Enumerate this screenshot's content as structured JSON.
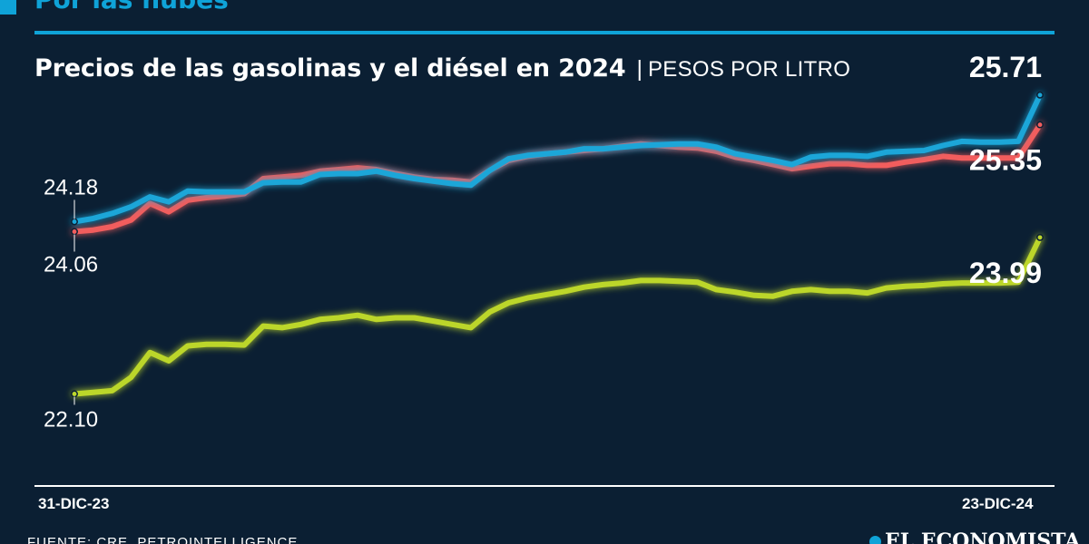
{
  "header": {
    "section_title": "Por las nubes"
  },
  "chart_title": {
    "main": "Precios de las gasolinas y el diésel en 2024",
    "separator": "|",
    "unit": "PESOS POR LITRO"
  },
  "colors": {
    "background": "#0b1f33",
    "accent": "#0fa3d8",
    "series_blue": "#1aa6d8",
    "series_red": "#f25d5d",
    "series_green": "#bcd62c"
  },
  "chart_data": {
    "type": "line",
    "x": [
      "2023-12-31",
      "2024-01-07",
      "2024-01-14",
      "2024-01-21",
      "2024-01-28",
      "2024-02-04",
      "2024-02-11",
      "2024-02-18",
      "2024-02-25",
      "2024-03-03",
      "2024-03-10",
      "2024-03-17",
      "2024-03-24",
      "2024-03-31",
      "2024-04-07",
      "2024-04-14",
      "2024-04-21",
      "2024-04-28",
      "2024-05-05",
      "2024-05-12",
      "2024-05-19",
      "2024-05-26",
      "2024-06-02",
      "2024-06-09",
      "2024-06-16",
      "2024-06-23",
      "2024-06-30",
      "2024-07-07",
      "2024-07-14",
      "2024-07-21",
      "2024-07-28",
      "2024-08-04",
      "2024-08-11",
      "2024-08-18",
      "2024-08-25",
      "2024-09-01",
      "2024-09-08",
      "2024-09-15",
      "2024-09-22",
      "2024-09-29",
      "2024-10-06",
      "2024-10-13",
      "2024-10-20",
      "2024-10-27",
      "2024-11-03",
      "2024-11-10",
      "2024-11-17",
      "2024-11-24",
      "2024-12-01",
      "2024-12-08",
      "2024-12-15",
      "2024-12-23"
    ],
    "x_tick_labels": [
      "31-DIC-23",
      "23-DIC-24"
    ],
    "series": [
      {
        "color": "#1aa6d8",
        "values": [
          24.18,
          24.22,
          24.28,
          24.36,
          24.48,
          24.42,
          24.55,
          24.54,
          24.54,
          24.54,
          24.65,
          24.66,
          24.66,
          24.75,
          24.76,
          24.76,
          24.79,
          24.74,
          24.7,
          24.67,
          24.64,
          24.62,
          24.8,
          24.94,
          24.98,
          25.0,
          25.02,
          25.06,
          25.06,
          25.08,
          25.1,
          25.11,
          25.12,
          25.12,
          25.08,
          25.0,
          24.96,
          24.92,
          24.87,
          24.96,
          24.98,
          24.98,
          24.97,
          25.02,
          25.03,
          25.04,
          25.1,
          25.15,
          25.14,
          25.14,
          25.15,
          25.71
        ]
      },
      {
        "color": "#f25d5d",
        "values": [
          24.06,
          24.08,
          24.12,
          24.2,
          24.4,
          24.3,
          24.44,
          24.47,
          24.49,
          24.52,
          24.7,
          24.72,
          24.74,
          24.79,
          24.81,
          24.83,
          24.81,
          24.76,
          24.72,
          24.69,
          24.68,
          24.66,
          24.8,
          24.92,
          24.97,
          25.0,
          25.02,
          25.04,
          25.06,
          25.09,
          25.12,
          25.1,
          25.08,
          25.07,
          25.03,
          24.96,
          24.92,
          24.87,
          24.82,
          24.85,
          24.88,
          24.88,
          24.86,
          24.86,
          24.9,
          24.93,
          24.97,
          24.95,
          24.95,
          24.95,
          24.95,
          25.35
        ]
      },
      {
        "color": "#bcd62c",
        "values": [
          22.1,
          22.12,
          22.14,
          22.3,
          22.6,
          22.5,
          22.68,
          22.7,
          22.7,
          22.69,
          22.92,
          22.9,
          22.94,
          23.0,
          23.02,
          23.05,
          23.0,
          23.02,
          23.02,
          22.98,
          22.94,
          22.9,
          23.09,
          23.2,
          23.26,
          23.3,
          23.34,
          23.39,
          23.42,
          23.44,
          23.47,
          23.47,
          23.46,
          23.45,
          23.36,
          23.33,
          23.29,
          23.28,
          23.34,
          23.36,
          23.34,
          23.34,
          23.32,
          23.38,
          23.4,
          23.41,
          23.43,
          23.44,
          23.44,
          23.44,
          23.45,
          23.99
        ]
      }
    ],
    "ylim": [
      21.0,
      26.2
    ],
    "grid": false,
    "legend": "none"
  },
  "annotations": {
    "blue_start": "24.18",
    "red_start": "24.06",
    "green_start": "22.10",
    "blue_end": "25.71",
    "red_end": "25.35",
    "green_end": "23.99"
  },
  "footer": {
    "source": "FUENTE: CRE, PETROINTELLIGENCE",
    "brand": "EL ECONOMISTA"
  }
}
